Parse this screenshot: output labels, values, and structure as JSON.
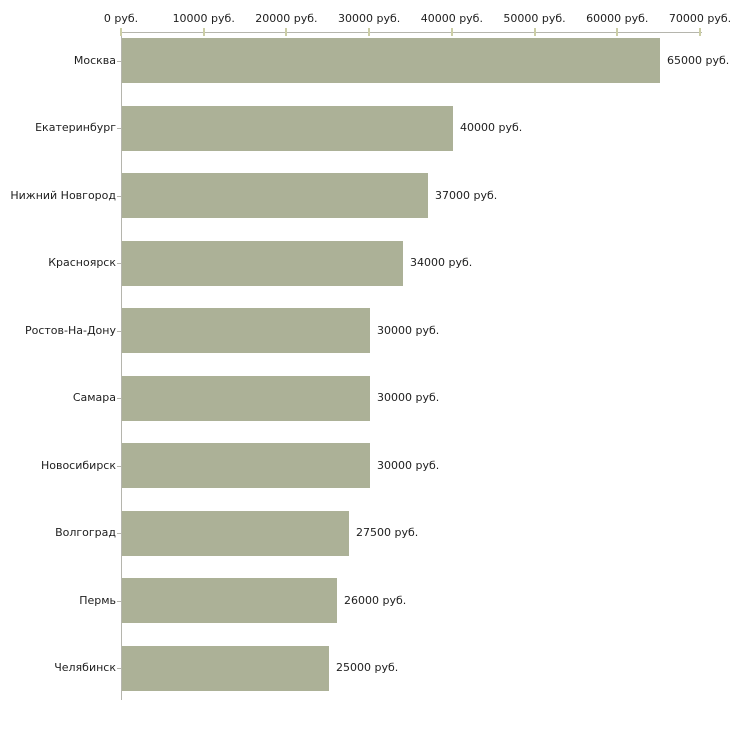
{
  "chart_data": {
    "type": "bar",
    "orientation": "horizontal",
    "title": "",
    "xlabel": "",
    "ylabel": "",
    "unit": "руб.",
    "categories": [
      "Москва",
      "Екатеринбург",
      "Нижний Новгород",
      "Красноярск",
      "Ростов-На-Дону",
      "Самара",
      "Новосибирск",
      "Волгоград",
      "Пермь",
      "Челябинск"
    ],
    "values": [
      65000,
      40000,
      37000,
      34000,
      30000,
      30000,
      30000,
      27500,
      26000,
      25000
    ],
    "value_labels": [
      "65000 руб.",
      "40000 руб.",
      "37000 руб.",
      "34000 руб.",
      "30000 руб.",
      "30000 руб.",
      "30000 руб.",
      "27500 руб.",
      "26000 руб.",
      "25000 руб."
    ],
    "x_axis": {
      "position": "top",
      "min": 0,
      "max": 70000,
      "ticks": [
        0,
        10000,
        20000,
        30000,
        40000,
        50000,
        60000,
        70000
      ],
      "tick_labels": [
        "0 руб.",
        "10000 руб.",
        "20000 руб.",
        "30000 руб.",
        "40000 руб.",
        "50000 руб.",
        "60000 руб.",
        "70000 руб."
      ]
    },
    "legend": null,
    "grid": false,
    "colors": {
      "bar": "#acb197",
      "axis_line": "#b5b5ad",
      "tick_mark": "#ccceA6",
      "text": "#1e1e1e",
      "background": "#ffffff"
    }
  }
}
